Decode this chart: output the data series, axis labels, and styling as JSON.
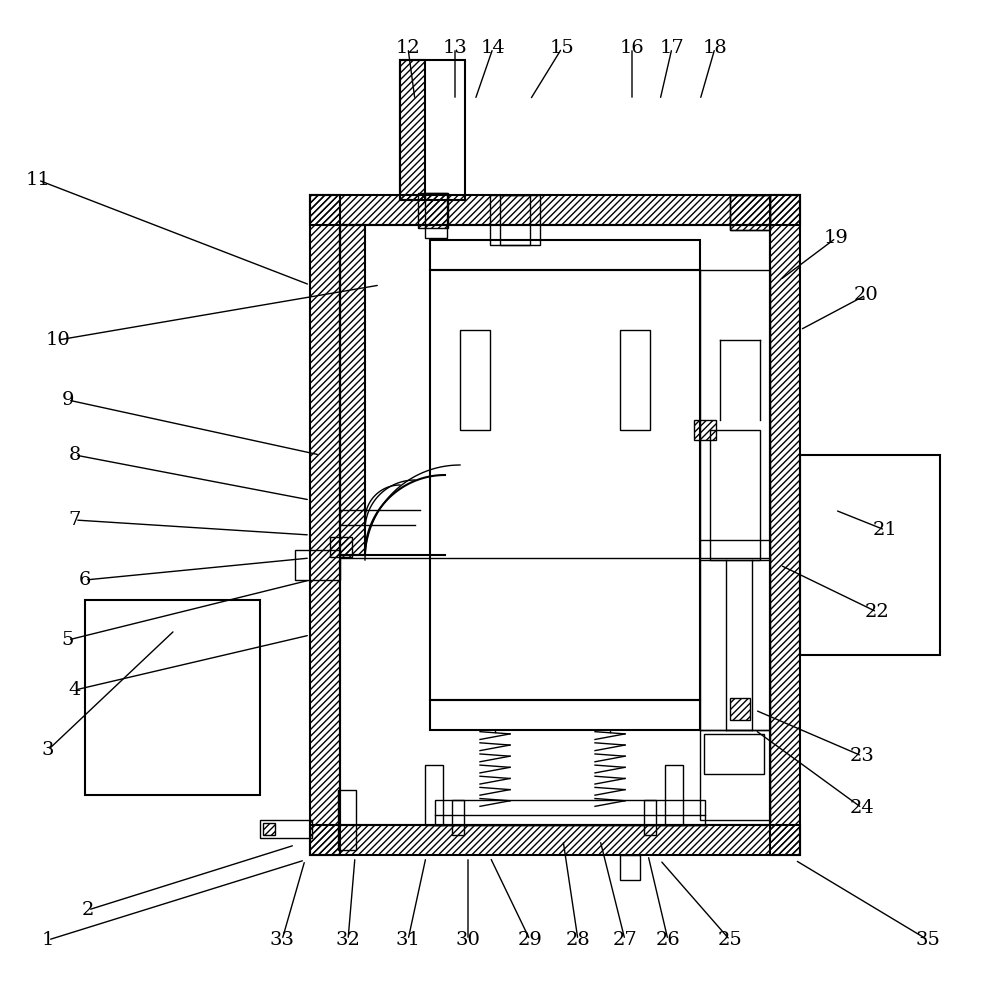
{
  "bg_color": "#ffffff",
  "line_color": "#000000",
  "fig_width": 10.0,
  "fig_height": 9.88,
  "leaders": [
    [
      "1",
      305,
      860,
      48,
      940
    ],
    [
      "2",
      295,
      845,
      88,
      910
    ],
    [
      "3",
      175,
      630,
      48,
      750
    ],
    [
      "4",
      310,
      635,
      75,
      690
    ],
    [
      "5",
      310,
      580,
      68,
      640
    ],
    [
      "6",
      310,
      558,
      85,
      580
    ],
    [
      "7",
      310,
      535,
      75,
      520
    ],
    [
      "8",
      310,
      500,
      75,
      455
    ],
    [
      "9",
      320,
      455,
      68,
      400
    ],
    [
      "10",
      380,
      285,
      58,
      340
    ],
    [
      "11",
      310,
      285,
      38,
      180
    ],
    [
      "12",
      415,
      100,
      408,
      48
    ],
    [
      "13",
      455,
      100,
      455,
      48
    ],
    [
      "14",
      475,
      100,
      493,
      48
    ],
    [
      "15",
      530,
      100,
      562,
      48
    ],
    [
      "16",
      632,
      100,
      632,
      48
    ],
    [
      "17",
      660,
      100,
      672,
      48
    ],
    [
      "18",
      700,
      100,
      715,
      48
    ],
    [
      "19",
      780,
      280,
      836,
      238
    ],
    [
      "20",
      800,
      330,
      866,
      295
    ],
    [
      "21",
      835,
      510,
      885,
      530
    ],
    [
      "22",
      780,
      565,
      877,
      612
    ],
    [
      "23",
      755,
      710,
      862,
      756
    ],
    [
      "24",
      755,
      730,
      862,
      808
    ],
    [
      "25",
      660,
      860,
      730,
      940
    ],
    [
      "26",
      648,
      855,
      668,
      940
    ],
    [
      "27",
      600,
      840,
      625,
      940
    ],
    [
      "28",
      563,
      840,
      578,
      940
    ],
    [
      "29",
      490,
      857,
      530,
      940
    ],
    [
      "30",
      468,
      857,
      468,
      940
    ],
    [
      "31",
      426,
      857,
      408,
      940
    ],
    [
      "32",
      355,
      857,
      348,
      940
    ],
    [
      "33",
      305,
      860,
      282,
      940
    ],
    [
      "35",
      795,
      860,
      928,
      940
    ]
  ]
}
